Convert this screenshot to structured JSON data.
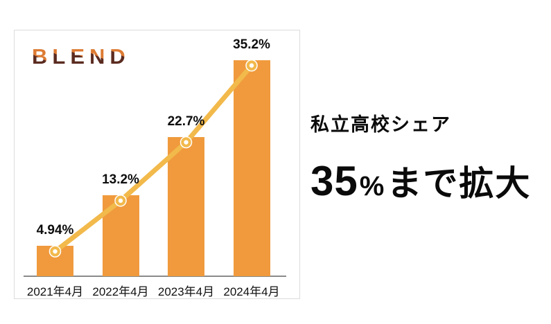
{
  "logo": {
    "text": "BLEND",
    "color_top": "#DD7B33",
    "color_bottom": "#5B2B20"
  },
  "chart_data": {
    "type": "bar",
    "overlay": "line",
    "categories": [
      "2021年4月",
      "2022年4月",
      "2023年4月",
      "2024年4月"
    ],
    "values": [
      4.94,
      13.2,
      22.7,
      35.2
    ],
    "labels": [
      "4.94%",
      "13.2%",
      "22.7%",
      "35.2%"
    ],
    "title": "",
    "xlabel": "",
    "ylabel": "",
    "ylim": [
      0,
      40
    ],
    "grid": false,
    "legend": "none",
    "bar_color": "#F09A3D",
    "line_color": "#F2B94B",
    "marker_fill": "#ffffff",
    "axis_color": "#8a8a8a"
  },
  "headline": {
    "subtitle": "私立高校シェア",
    "big_value": "35",
    "big_percent": "%",
    "big_suffix": "まで拡大"
  }
}
